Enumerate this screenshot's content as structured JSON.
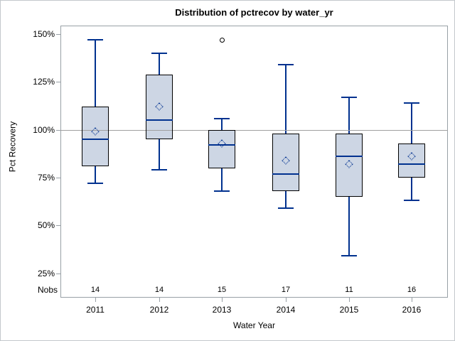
{
  "chart_data": {
    "type": "boxplot",
    "title": "Distribution of pctrecov by water_yr",
    "xlabel": "Water Year",
    "ylabel": "Pct Recovery",
    "nobs_label": "Nobs",
    "y_ticks": [
      "150%",
      "125%",
      "100%",
      "75%",
      "50%",
      "25%"
    ],
    "y_tick_values": [
      150,
      125,
      100,
      75,
      50,
      25
    ],
    "ylim_note": "percent scale, gridlines off",
    "reference_line": 100,
    "legend": "none",
    "categories": [
      "2011",
      "2012",
      "2013",
      "2014",
      "2015",
      "2016"
    ],
    "nobs": [
      14,
      14,
      15,
      17,
      11,
      16
    ],
    "series": [
      {
        "category": "2011",
        "min": 72,
        "q1": 81,
        "median": 95,
        "q3": 112,
        "max": 147,
        "mean": 99,
        "outliers": []
      },
      {
        "category": "2012",
        "min": 79,
        "q1": 95,
        "median": 105,
        "q3": 129,
        "max": 140,
        "mean": 112,
        "outliers": []
      },
      {
        "category": "2013",
        "min": 68,
        "q1": 80,
        "median": 92,
        "q3": 100,
        "max": 106,
        "mean": 93,
        "outliers": [
          147
        ]
      },
      {
        "category": "2014",
        "min": 59,
        "q1": 68,
        "median": 77,
        "q3": 98,
        "max": 134,
        "mean": 84,
        "outliers": []
      },
      {
        "category": "2015",
        "min": 34,
        "q1": 65,
        "median": 86,
        "q3": 98,
        "max": 117,
        "mean": 82,
        "outliers": []
      },
      {
        "category": "2016",
        "min": 63,
        "q1": 75,
        "median": 82,
        "q3": 93,
        "max": 114,
        "mean": 86,
        "outliers": []
      }
    ],
    "colors": {
      "box_fill": "#cdd6e4",
      "box_border": "#000000",
      "line": "#00318f",
      "reference_line": "#a0a0a0",
      "frame": "#98a0a6",
      "text": "#000000"
    }
  }
}
